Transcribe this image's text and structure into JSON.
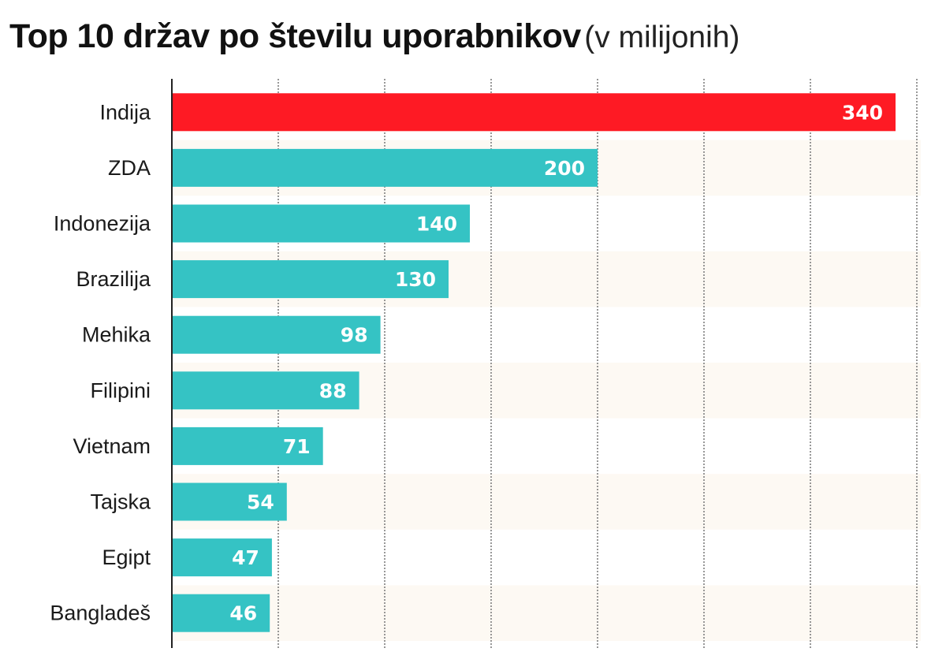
{
  "chart_data": {
    "type": "bar",
    "orientation": "horizontal",
    "title": "Top 10 držav po številu uporabnikov",
    "subtitle": "(v milijonih)",
    "categories": [
      "Indija",
      "ZDA",
      "Indonezija",
      "Brazilija",
      "Mehika",
      "Filipini",
      "Vietnam",
      "Tajska",
      "Egipt",
      "Bangladeš"
    ],
    "values": [
      340,
      200,
      140,
      130,
      98,
      88,
      71,
      54,
      47,
      46
    ],
    "value_labels": [
      "340",
      "200",
      "140",
      "130",
      "98",
      "88",
      "71",
      "54",
      "47",
      "46"
    ],
    "xlim": [
      0,
      350
    ],
    "grid_step": 50,
    "grid": true,
    "xlabel": "",
    "ylabel": "",
    "colors": {
      "highlight": "#fe1a24",
      "default": "#35c3c4",
      "band": "#fdf9f3",
      "grid": "#777777"
    }
  }
}
